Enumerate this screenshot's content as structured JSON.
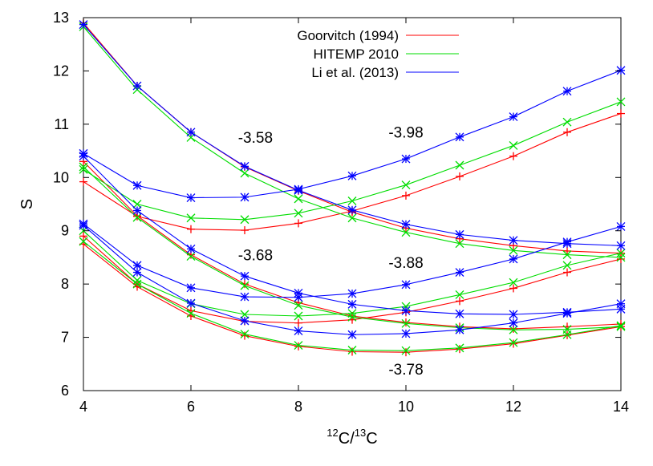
{
  "chart_data": {
    "type": "line",
    "xlabel": {
      "sup1": "12",
      "base1": "C/",
      "sup2": "13",
      "base2": "C"
    },
    "ylabel": "S",
    "xlim": [
      4,
      14
    ],
    "ylim": [
      6,
      13
    ],
    "xticks": [
      "4",
      "6",
      "8",
      "10",
      "12",
      "14"
    ],
    "yticks": [
      "6",
      "7",
      "8",
      "9",
      "10",
      "11",
      "12",
      "13"
    ],
    "grid": false,
    "legend_position": "top-center",
    "x": [
      4,
      5,
      6,
      7,
      8,
      9,
      10,
      11,
      12,
      13,
      14
    ],
    "series": [
      {
        "name": "Goorvitch (1994)",
        "color": "#ff0000",
        "marker": "plus",
        "curves": [
          {
            "label": "-3.58",
            "values": [
              12.9,
              11.72,
              10.85,
              10.2,
              9.75,
              9.35,
              9.05,
              8.85,
              8.72,
              8.62,
              8.58
            ]
          },
          {
            "label": "-3.68",
            "values": [
              10.3,
              9.28,
              8.55,
              8.0,
              7.65,
              7.4,
              7.28,
              7.2,
              7.16,
              7.2,
              7.25
            ]
          },
          {
            "label": "-3.78",
            "values": [
              8.75,
              7.95,
              7.4,
              7.03,
              6.83,
              6.73,
              6.72,
              6.78,
              6.88,
              7.04,
              7.2
            ]
          },
          {
            "label": "-3.88",
            "values": [
              8.9,
              8.0,
              7.5,
              7.3,
              7.27,
              7.33,
              7.47,
              7.68,
              7.92,
              8.22,
              8.47
            ]
          },
          {
            "label": "-3.98",
            "values": [
              9.92,
              9.27,
              9.03,
              9.01,
              9.14,
              9.37,
              9.66,
              10.02,
              10.4,
              10.85,
              11.2
            ]
          }
        ]
      },
      {
        "name": "HITEMP 2010",
        "color": "#00dd00",
        "marker": "cross",
        "curves": [
          {
            "label": "-3.58",
            "values": [
              12.83,
              11.65,
              10.75,
              10.08,
              9.6,
              9.24,
              8.97,
              8.76,
              8.63,
              8.55,
              8.5
            ]
          },
          {
            "label": "-3.68",
            "values": [
              10.2,
              9.25,
              8.52,
              7.97,
              7.6,
              7.38,
              7.26,
              7.18,
              7.14,
              7.15,
              7.2
            ]
          },
          {
            "label": "-3.78",
            "values": [
              8.8,
              8.0,
              7.45,
              7.06,
              6.85,
              6.76,
              6.75,
              6.8,
              6.9,
              7.05,
              7.22
            ]
          },
          {
            "label": "-3.88",
            "values": [
              9.0,
              8.07,
              7.63,
              7.43,
              7.4,
              7.45,
              7.58,
              7.8,
              8.03,
              8.35,
              8.58
            ]
          },
          {
            "label": "-3.98",
            "values": [
              10.15,
              9.5,
              9.24,
              9.21,
              9.33,
              9.56,
              9.86,
              10.23,
              10.6,
              11.04,
              11.42
            ]
          }
        ]
      },
      {
        "name": "Li et al. (2013)",
        "color": "#0000ff",
        "marker": "star",
        "curves": [
          {
            "label": "-3.58",
            "values": [
              12.87,
              11.72,
              10.85,
              10.21,
              9.76,
              9.39,
              9.12,
              8.93,
              8.82,
              8.76,
              8.72
            ]
          },
          {
            "label": "-3.68",
            "values": [
              10.4,
              9.38,
              8.66,
              8.15,
              7.83,
              7.62,
              7.5,
              7.44,
              7.43,
              7.47,
              7.53
            ]
          },
          {
            "label": "-3.78",
            "values": [
              9.1,
              8.22,
              7.64,
              7.31,
              7.12,
              7.05,
              7.07,
              7.14,
              7.27,
              7.45,
              7.63
            ]
          },
          {
            "label": "-3.88",
            "values": [
              9.13,
              8.35,
              7.93,
              7.76,
              7.75,
              7.82,
              7.99,
              8.22,
              8.47,
              8.79,
              9.08
            ]
          },
          {
            "label": "-3.98",
            "values": [
              10.45,
              9.85,
              9.62,
              9.63,
              9.78,
              10.03,
              10.35,
              10.76,
              11.14,
              11.62,
              12.01
            ]
          }
        ]
      }
    ],
    "annotations": [
      {
        "text": "-3.58",
        "x": 7.2,
        "y": 10.65
      },
      {
        "text": "-3.98",
        "x": 10.0,
        "y": 10.75
      },
      {
        "text": "-3.68",
        "x": 7.2,
        "y": 8.45
      },
      {
        "text": "-3.88",
        "x": 10.0,
        "y": 8.3
      },
      {
        "text": "-3.78",
        "x": 10.0,
        "y": 6.3
      }
    ]
  }
}
